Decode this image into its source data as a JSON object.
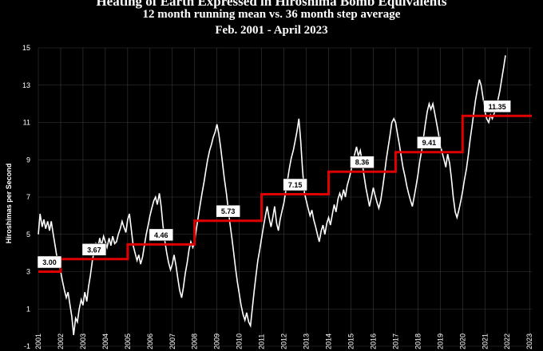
{
  "chart_data": {
    "type": "line",
    "title": "Heating of Earth Expressed in Hiroshima Bomb Equivalents",
    "subtitle": "12 month running mean vs. 36 month step average",
    "date_range": "Feb. 2001 - April 2023",
    "ylabel": "Hiroshimas per Second",
    "xlabel": "",
    "ylim": [
      -1,
      15
    ],
    "xlim": [
      2001,
      2023.1
    ],
    "yticks": [
      -1,
      1,
      3,
      5,
      7,
      9,
      11,
      13,
      15
    ],
    "xticks": [
      "2001",
      "2002",
      "2003",
      "2004",
      "2005",
      "2006",
      "2007",
      "2008",
      "2009",
      "2010",
      "2011",
      "2012",
      "2013",
      "2014",
      "2015",
      "2016",
      "2017",
      "2018",
      "2019",
      "2020",
      "2021",
      "2022",
      "2023"
    ],
    "grid": true,
    "colors": {
      "running_mean": "#ffffff",
      "step_average": "#e00000",
      "background": "#000000",
      "grid": "#3a3a3a"
    },
    "series": [
      {
        "style": "white-line",
        "points": [
          [
            2001.0,
            5.0
          ],
          [
            2001.08,
            6.1
          ],
          [
            2001.17,
            5.4
          ],
          [
            2001.25,
            5.8
          ],
          [
            2001.33,
            5.3
          ],
          [
            2001.42,
            5.7
          ],
          [
            2001.5,
            5.2
          ],
          [
            2001.58,
            5.7
          ],
          [
            2001.67,
            5.0
          ],
          [
            2001.75,
            4.4
          ],
          [
            2001.83,
            3.8
          ],
          [
            2001.92,
            3.4
          ],
          [
            2002.0,
            3.0
          ],
          [
            2002.08,
            2.5
          ],
          [
            2002.17,
            2.0
          ],
          [
            2002.25,
            1.6
          ],
          [
            2002.33,
            1.9
          ],
          [
            2002.42,
            1.2
          ],
          [
            2002.5,
            0.6
          ],
          [
            2002.58,
            -0.4
          ],
          [
            2002.67,
            0.5
          ],
          [
            2002.75,
            0.3
          ],
          [
            2002.83,
            1.0
          ],
          [
            2002.92,
            1.5
          ],
          [
            2003.0,
            1.2
          ],
          [
            2003.08,
            1.9
          ],
          [
            2003.17,
            1.4
          ],
          [
            2003.25,
            2.2
          ],
          [
            2003.33,
            2.8
          ],
          [
            2003.42,
            3.6
          ],
          [
            2003.5,
            4.1
          ],
          [
            2003.58,
            4.5
          ],
          [
            2003.67,
            4.3
          ],
          [
            2003.75,
            4.8
          ],
          [
            2003.83,
            4.4
          ],
          [
            2003.92,
            4.9
          ],
          [
            2004.0,
            4.6
          ],
          [
            2004.08,
            4.3
          ],
          [
            2004.17,
            4.8
          ],
          [
            2004.25,
            4.4
          ],
          [
            2004.33,
            4.9
          ],
          [
            2004.42,
            4.5
          ],
          [
            2004.5,
            4.6
          ],
          [
            2004.58,
            5.0
          ],
          [
            2004.67,
            5.3
          ],
          [
            2004.75,
            5.7
          ],
          [
            2004.83,
            5.4
          ],
          [
            2004.92,
            5.1
          ],
          [
            2005.0,
            5.8
          ],
          [
            2005.08,
            6.1
          ],
          [
            2005.17,
            5.2
          ],
          [
            2005.25,
            4.4
          ],
          [
            2005.33,
            4.0
          ],
          [
            2005.42,
            3.6
          ],
          [
            2005.5,
            3.9
          ],
          [
            2005.58,
            3.4
          ],
          [
            2005.67,
            3.8
          ],
          [
            2005.75,
            4.4
          ],
          [
            2005.83,
            5.0
          ],
          [
            2005.92,
            5.5
          ],
          [
            2006.0,
            6.0
          ],
          [
            2006.08,
            6.4
          ],
          [
            2006.17,
            6.8
          ],
          [
            2006.25,
            7.0
          ],
          [
            2006.33,
            6.6
          ],
          [
            2006.42,
            7.2
          ],
          [
            2006.5,
            6.5
          ],
          [
            2006.58,
            5.5
          ],
          [
            2006.67,
            4.6
          ],
          [
            2006.75,
            4.0
          ],
          [
            2006.83,
            3.5
          ],
          [
            2006.92,
            3.1
          ],
          [
            2007.0,
            3.4
          ],
          [
            2007.08,
            3.9
          ],
          [
            2007.17,
            3.3
          ],
          [
            2007.25,
            2.6
          ],
          [
            2007.33,
            2.0
          ],
          [
            2007.42,
            1.6
          ],
          [
            2007.5,
            2.2
          ],
          [
            2007.58,
            2.9
          ],
          [
            2007.67,
            3.5
          ],
          [
            2007.75,
            4.2
          ],
          [
            2007.83,
            4.6
          ],
          [
            2007.92,
            4.3
          ],
          [
            2008.0,
            4.6
          ],
          [
            2008.08,
            5.3
          ],
          [
            2008.17,
            6.0
          ],
          [
            2008.25,
            6.6
          ],
          [
            2008.33,
            7.2
          ],
          [
            2008.42,
            7.8
          ],
          [
            2008.5,
            8.4
          ],
          [
            2008.58,
            9.0
          ],
          [
            2008.67,
            9.5
          ],
          [
            2008.75,
            9.8
          ],
          [
            2008.83,
            10.2
          ],
          [
            2008.92,
            10.5
          ],
          [
            2009.0,
            10.9
          ],
          [
            2009.08,
            10.4
          ],
          [
            2009.17,
            9.6
          ],
          [
            2009.25,
            8.8
          ],
          [
            2009.33,
            8.0
          ],
          [
            2009.42,
            7.2
          ],
          [
            2009.5,
            6.4
          ],
          [
            2009.58,
            5.6
          ],
          [
            2009.67,
            4.8
          ],
          [
            2009.75,
            4.0
          ],
          [
            2009.83,
            3.2
          ],
          [
            2009.92,
            2.4
          ],
          [
            2010.0,
            1.8
          ],
          [
            2010.08,
            1.2
          ],
          [
            2010.17,
            0.7
          ],
          [
            2010.25,
            0.4
          ],
          [
            2010.33,
            0.8
          ],
          [
            2010.42,
            0.3
          ],
          [
            2010.5,
            0.1
          ],
          [
            2010.58,
            1.0
          ],
          [
            2010.67,
            2.0
          ],
          [
            2010.75,
            2.8
          ],
          [
            2010.83,
            3.6
          ],
          [
            2010.92,
            4.2
          ],
          [
            2011.0,
            4.8
          ],
          [
            2011.08,
            5.4
          ],
          [
            2011.17,
            6.0
          ],
          [
            2011.25,
            6.5
          ],
          [
            2011.33,
            5.9
          ],
          [
            2011.42,
            5.4
          ],
          [
            2011.5,
            5.9
          ],
          [
            2011.58,
            6.5
          ],
          [
            2011.67,
            5.6
          ],
          [
            2011.75,
            5.2
          ],
          [
            2011.83,
            5.8
          ],
          [
            2011.92,
            6.3
          ],
          [
            2012.0,
            6.7
          ],
          [
            2012.08,
            7.3
          ],
          [
            2012.17,
            8.0
          ],
          [
            2012.25,
            8.6
          ],
          [
            2012.33,
            9.1
          ],
          [
            2012.42,
            9.5
          ],
          [
            2012.5,
            10.0
          ],
          [
            2012.58,
            10.5
          ],
          [
            2012.67,
            11.2
          ],
          [
            2012.75,
            10.0
          ],
          [
            2012.83,
            8.5
          ],
          [
            2012.92,
            7.2
          ],
          [
            2013.0,
            6.8
          ],
          [
            2013.08,
            6.4
          ],
          [
            2013.17,
            6.0
          ],
          [
            2013.25,
            6.3
          ],
          [
            2013.33,
            5.8
          ],
          [
            2013.42,
            5.4
          ],
          [
            2013.5,
            5.0
          ],
          [
            2013.58,
            4.6
          ],
          [
            2013.67,
            5.2
          ],
          [
            2013.75,
            5.5
          ],
          [
            2013.83,
            5.0
          ],
          [
            2013.92,
            5.6
          ],
          [
            2014.0,
            5.9
          ],
          [
            2014.08,
            5.5
          ],
          [
            2014.17,
            6.1
          ],
          [
            2014.25,
            6.6
          ],
          [
            2014.33,
            6.2
          ],
          [
            2014.42,
            6.9
          ],
          [
            2014.5,
            7.2
          ],
          [
            2014.58,
            6.9
          ],
          [
            2014.67,
            7.4
          ],
          [
            2014.75,
            7.0
          ],
          [
            2014.83,
            7.6
          ],
          [
            2014.92,
            8.0
          ],
          [
            2015.0,
            8.4
          ],
          [
            2015.08,
            8.9
          ],
          [
            2015.17,
            9.3
          ],
          [
            2015.25,
            9.7
          ],
          [
            2015.33,
            9.2
          ],
          [
            2015.42,
            9.5
          ],
          [
            2015.5,
            8.9
          ],
          [
            2015.58,
            8.2
          ],
          [
            2015.67,
            7.5
          ],
          [
            2015.75,
            7.0
          ],
          [
            2015.83,
            6.5
          ],
          [
            2015.92,
            7.0
          ],
          [
            2016.0,
            7.5
          ],
          [
            2016.08,
            7.1
          ],
          [
            2016.17,
            6.7
          ],
          [
            2016.25,
            6.4
          ],
          [
            2016.33,
            6.8
          ],
          [
            2016.42,
            7.5
          ],
          [
            2016.5,
            8.2
          ],
          [
            2016.58,
            9.0
          ],
          [
            2016.67,
            9.7
          ],
          [
            2016.75,
            10.3
          ],
          [
            2016.83,
            11.0
          ],
          [
            2016.92,
            11.2
          ],
          [
            2017.0,
            11.0
          ],
          [
            2017.08,
            10.4
          ],
          [
            2017.17,
            9.8
          ],
          [
            2017.25,
            9.2
          ],
          [
            2017.33,
            8.6
          ],
          [
            2017.42,
            8.1
          ],
          [
            2017.5,
            7.6
          ],
          [
            2017.58,
            7.2
          ],
          [
            2017.67,
            6.8
          ],
          [
            2017.75,
            6.5
          ],
          [
            2017.83,
            7.0
          ],
          [
            2017.92,
            7.6
          ],
          [
            2018.0,
            8.2
          ],
          [
            2018.08,
            8.9
          ],
          [
            2018.17,
            9.5
          ],
          [
            2018.25,
            10.2
          ],
          [
            2018.33,
            10.9
          ],
          [
            2018.42,
            11.6
          ],
          [
            2018.5,
            12.0
          ],
          [
            2018.58,
            11.7
          ],
          [
            2018.67,
            12.0
          ],
          [
            2018.75,
            11.5
          ],
          [
            2018.83,
            11.0
          ],
          [
            2018.92,
            10.4
          ],
          [
            2019.0,
            9.8
          ],
          [
            2019.08,
            9.4
          ],
          [
            2019.17,
            9.0
          ],
          [
            2019.25,
            8.6
          ],
          [
            2019.33,
            9.3
          ],
          [
            2019.42,
            8.8
          ],
          [
            2019.5,
            8.0
          ],
          [
            2019.58,
            7.0
          ],
          [
            2019.67,
            6.2
          ],
          [
            2019.75,
            5.9
          ],
          [
            2019.83,
            6.3
          ],
          [
            2019.92,
            6.8
          ],
          [
            2020.0,
            7.3
          ],
          [
            2020.08,
            7.9
          ],
          [
            2020.17,
            8.5
          ],
          [
            2020.25,
            9.2
          ],
          [
            2020.33,
            10.0
          ],
          [
            2020.42,
            10.8
          ],
          [
            2020.5,
            11.5
          ],
          [
            2020.58,
            12.2
          ],
          [
            2020.67,
            12.8
          ],
          [
            2020.75,
            13.3
          ],
          [
            2020.83,
            13.0
          ],
          [
            2020.92,
            12.3
          ],
          [
            2021.0,
            11.6
          ],
          [
            2021.08,
            11.2
          ],
          [
            2021.17,
            11.0
          ],
          [
            2021.25,
            11.4
          ],
          [
            2021.33,
            11.2
          ],
          [
            2021.42,
            11.5
          ],
          [
            2021.5,
            11.8
          ],
          [
            2021.58,
            12.2
          ],
          [
            2021.67,
            12.7
          ],
          [
            2021.75,
            13.3
          ],
          [
            2021.83,
            13.9
          ],
          [
            2021.92,
            14.6
          ]
        ]
      },
      {
        "style": "red-step",
        "steps": [
          {
            "x0": 2001.0,
            "x1": 2002.0,
            "value": 3.0,
            "label": "3.00"
          },
          {
            "x0": 2002.0,
            "x1": 2005.0,
            "value": 3.67,
            "label": "3.67"
          },
          {
            "x0": 2005.0,
            "x1": 2008.0,
            "value": 4.46,
            "label": "4.46"
          },
          {
            "x0": 2008.0,
            "x1": 2011.0,
            "value": 5.73,
            "label": "5.73"
          },
          {
            "x0": 2011.0,
            "x1": 2014.0,
            "value": 7.15,
            "label": "7.15"
          },
          {
            "x0": 2014.0,
            "x1": 2017.0,
            "value": 8.36,
            "label": "8.36"
          },
          {
            "x0": 2017.0,
            "x1": 2020.0,
            "value": 9.41,
            "label": "9.41"
          },
          {
            "x0": 2020.0,
            "x1": 2023.1,
            "value": 11.35,
            "label": "11.35"
          }
        ]
      }
    ]
  }
}
